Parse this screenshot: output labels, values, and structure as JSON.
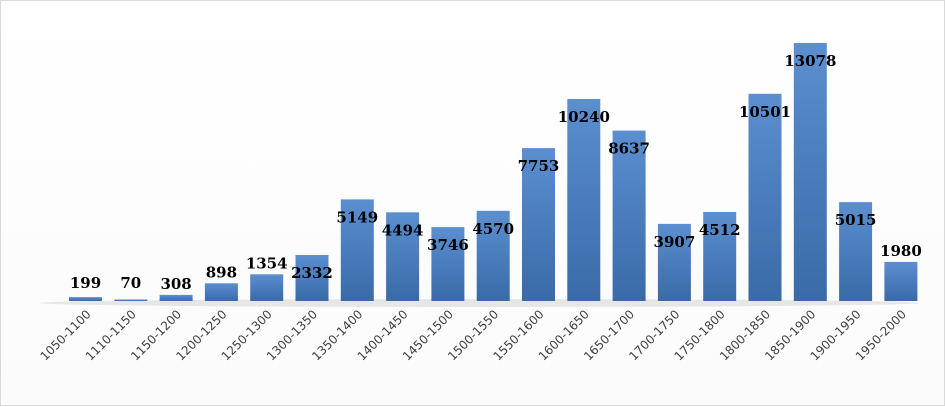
{
  "chart_data": {
    "type": "bar",
    "categories": [
      "1050-1100",
      "1110-1150",
      "1150-1200",
      "1200-1250",
      "1250-1300",
      "1300-1350",
      "1350-1400",
      "1400-1450",
      "1450-1500",
      "1500-1550",
      "1550-1600",
      "1600-1650",
      "1650-1700",
      "1700-1750",
      "1750-1800",
      "1800-1850",
      "1850-1900",
      "1900-1950",
      "1950-2000"
    ],
    "values": [
      199,
      70,
      308,
      898,
      1354,
      2332,
      5149,
      4494,
      3746,
      4570,
      7753,
      10240,
      8637,
      3907,
      4512,
      10501,
      13078,
      5015,
      1980
    ],
    "ylim": [
      0,
      13078
    ],
    "grid": false,
    "legend": "none",
    "colors": {
      "bar": "#4a7fc0",
      "bar_top": "#5b8fd0",
      "bar_bottom": "#3a6aa8"
    }
  }
}
